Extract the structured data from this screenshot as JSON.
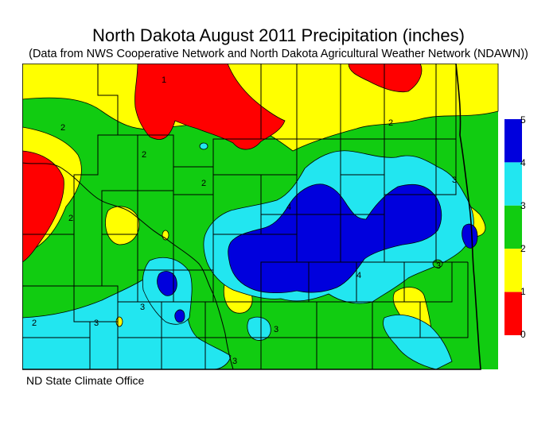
{
  "title": "North Dakota August 2011 Precipitation (inches)",
  "subtitle": "(Data from NWS Cooperative Network and North Dakota Agricultural Weather Network (NDAWN))",
  "credit": "ND State Climate Office",
  "legend": {
    "ticks": [
      "5",
      "4",
      "3",
      "2",
      "1",
      "0"
    ],
    "bins": [
      {
        "from": 4,
        "to": 5,
        "color": "#0000dd"
      },
      {
        "from": 3,
        "to": 4,
        "color": "#22e6f0"
      },
      {
        "from": 2,
        "to": 3,
        "color": "#11cc11"
      },
      {
        "from": 1,
        "to": 2,
        "color": "#ffff00"
      },
      {
        "from": 0,
        "to": 1,
        "color": "#ff0000"
      }
    ]
  },
  "contour_labels": [
    "1",
    "2",
    "3",
    "4"
  ]
}
